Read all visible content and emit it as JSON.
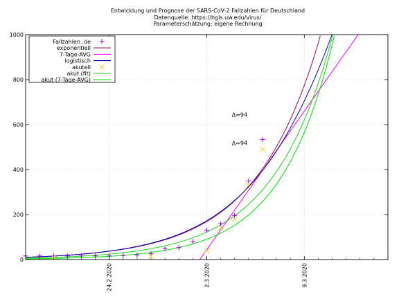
{
  "chart_data": {
    "type": "line",
    "title": "Entwicklung und Prognose der SARS-CoV-2 Fallzahlen für Deutschland",
    "subtitle_source": "Datenquelle: https://hgis.uw.edu/virus/",
    "subtitle_params": "Parameterschätzung: eigene Rechnung",
    "xlabel": "",
    "ylabel": "",
    "xlim": [
      "2020-02-18",
      "2020-03-15"
    ],
    "ylim": [
      0,
      1000
    ],
    "x_ticks": [
      {
        "date": "2020-02-24",
        "label": "24.2.2020"
      },
      {
        "date": "2020-03-02",
        "label": "2.3.2020"
      },
      {
        "date": "2020-03-09",
        "label": "9.3.2020"
      }
    ],
    "y_ticks": [
      0,
      200,
      400,
      600,
      800,
      1000
    ],
    "grid": true,
    "legend_position": "top-left",
    "series": [
      {
        "name": "Fallzahlen .de",
        "kind": "points",
        "marker": "plus",
        "color": "#9400d3",
        "x": [
          "2020-02-18",
          "2020-02-19",
          "2020-02-20",
          "2020-02-21",
          "2020-02-22",
          "2020-02-23",
          "2020-02-24",
          "2020-02-25",
          "2020-02-26",
          "2020-02-27",
          "2020-02-28",
          "2020-02-29",
          "2020-03-01",
          "2020-03-02",
          "2020-03-03",
          "2020-03-04",
          "2020-03-05",
          "2020-03-06"
        ],
        "y": [
          16,
          16,
          16,
          16,
          16,
          16,
          16,
          18,
          21,
          26,
          48,
          53,
          79,
          130,
          159,
          196,
          349,
          534
        ]
      },
      {
        "name": "exponentiell",
        "kind": "line",
        "color": "#a00050"
      },
      {
        "name": "7-Tage-AVG",
        "kind": "line",
        "color": "#ff00ff"
      },
      {
        "name": "logistisch",
        "kind": "line",
        "color": "#0000aa"
      },
      {
        "name": "akutell",
        "kind": "points",
        "marker": "cross",
        "color": "#e8d040",
        "x": [
          "2020-02-20",
          "2020-02-27",
          "2020-03-02",
          "2020-03-03",
          "2020-03-04",
          "2020-03-05",
          "2020-03-06"
        ],
        "y": [
          10,
          15,
          40,
          140,
          180,
          330,
          490
        ]
      },
      {
        "name": "akut (fit)",
        "kind": "line",
        "color": "#22cc22"
      },
      {
        "name": "akut (7-Tage-AVG)",
        "kind": "line",
        "color": "#00dd00"
      }
    ],
    "annotations": [
      {
        "text": "Δ=94",
        "x": "2020-03-04",
        "y": 635
      },
      {
        "text": "Δ=94",
        "x": "2020-03-04",
        "y": 510
      }
    ]
  }
}
